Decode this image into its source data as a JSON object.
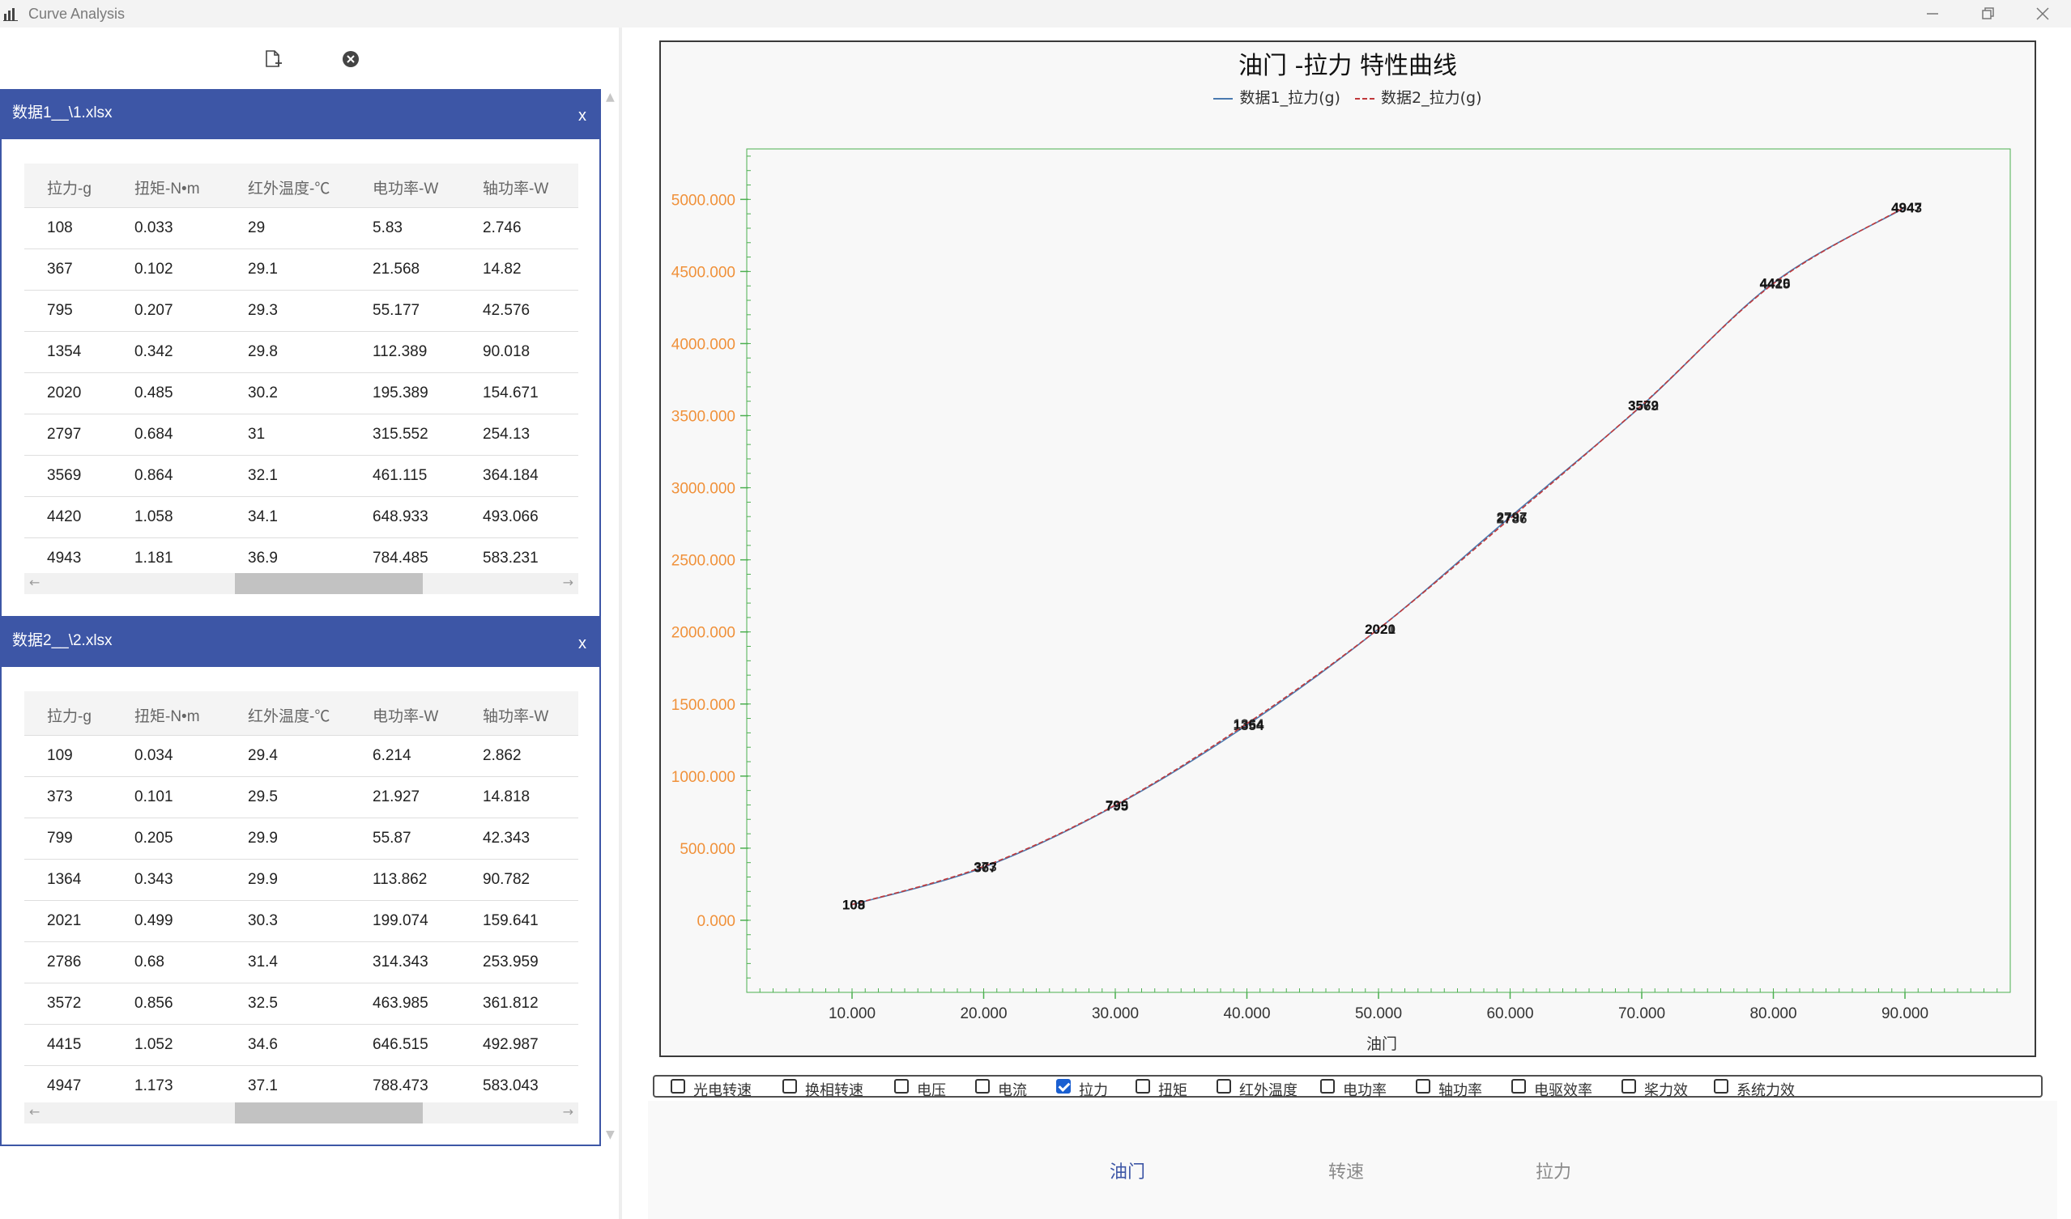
{
  "window": {
    "title": "Curve Analysis"
  },
  "toolbar": {
    "add_icon": "add-file-icon",
    "clear_icon": "close-circle-icon"
  },
  "panels": [
    {
      "title": "数据1__\\1.xlsx",
      "close_label": "x",
      "columns": [
        "拉力-g",
        "扭矩-N•m",
        "红外温度-℃",
        "电功率-W",
        "轴功率-W"
      ],
      "rows": [
        [
          "108",
          "0.033",
          "29",
          "5.83",
          "2.746"
        ],
        [
          "367",
          "0.102",
          "29.1",
          "21.568",
          "14.82"
        ],
        [
          "795",
          "0.207",
          "29.3",
          "55.177",
          "42.576"
        ],
        [
          "1354",
          "0.342",
          "29.8",
          "112.389",
          "90.018"
        ],
        [
          "2020",
          "0.485",
          "30.2",
          "195.389",
          "154.671"
        ],
        [
          "2797",
          "0.684",
          "31",
          "315.552",
          "254.13"
        ],
        [
          "3569",
          "0.864",
          "32.1",
          "461.115",
          "364.184"
        ],
        [
          "4420",
          "1.058",
          "34.1",
          "648.933",
          "493.066"
        ],
        [
          "4943",
          "1.181",
          "36.9",
          "784.485",
          "583.231"
        ]
      ]
    },
    {
      "title": "数据2__\\2.xlsx",
      "close_label": "x",
      "columns": [
        "拉力-g",
        "扭矩-N•m",
        "红外温度-℃",
        "电功率-W",
        "轴功率-W"
      ],
      "rows": [
        [
          "109",
          "0.034",
          "29.4",
          "6.214",
          "2.862"
        ],
        [
          "373",
          "0.101",
          "29.5",
          "21.927",
          "14.818"
        ],
        [
          "799",
          "0.205",
          "29.9",
          "55.87",
          "42.343"
        ],
        [
          "1364",
          "0.343",
          "29.9",
          "113.862",
          "90.782"
        ],
        [
          "2021",
          "0.499",
          "30.3",
          "199.074",
          "159.641"
        ],
        [
          "2786",
          "0.68",
          "31.4",
          "314.343",
          "253.959"
        ],
        [
          "3572",
          "0.856",
          "32.5",
          "463.985",
          "361.812"
        ],
        [
          "4415",
          "1.052",
          "34.6",
          "646.515",
          "492.987"
        ],
        [
          "4947",
          "1.173",
          "37.1",
          "788.473",
          "583.043"
        ]
      ]
    }
  ],
  "chart_data": {
    "type": "line",
    "title": "油门 -拉力 特性曲线",
    "xlabel": "油门",
    "ylabel": "",
    "x": [
      10,
      20,
      30,
      40,
      50,
      60,
      70,
      80,
      90
    ],
    "xlim": [
      2,
      98
    ],
    "ylim": [
      -500,
      5350
    ],
    "xticks": [
      "10.000",
      "20.000",
      "30.000",
      "40.000",
      "50.000",
      "60.000",
      "70.000",
      "80.000",
      "90.000"
    ],
    "yticks": [
      "0.000",
      "500.000",
      "1000.000",
      "1500.000",
      "2000.000",
      "2500.000",
      "3000.000",
      "3500.000",
      "4000.000",
      "4500.000",
      "5000.000"
    ],
    "legend_position": "top-center",
    "series": [
      {
        "name": "数据1_拉力(g)",
        "color": "#4a7ab0",
        "dash": false,
        "values": [
          108,
          367,
          795,
          1354,
          2020,
          2797,
          3569,
          4420,
          4943
        ],
        "labels": [
          "108",
          "367",
          "795",
          "1354",
          "2020",
          "2797",
          "3569",
          "4420",
          "4943"
        ]
      },
      {
        "name": "数据2_拉力(g)",
        "color": "#c0393b",
        "dash": true,
        "values": [
          109,
          373,
          799,
          1364,
          2021,
          2786,
          3572,
          4415,
          4947
        ],
        "labels": [
          "109",
          "373",
          "799",
          "1364",
          "2021",
          "2786",
          "3572",
          "4415",
          "4947"
        ]
      }
    ],
    "colors": {
      "axis": "#4caf50",
      "tick_label": "#f0913a",
      "x_tick_label": "#333333"
    }
  },
  "checkboxes": [
    {
      "label": "光电转速",
      "checked": false
    },
    {
      "label": "换相转速",
      "checked": false
    },
    {
      "label": "电压",
      "checked": false
    },
    {
      "label": "电流",
      "checked": false
    },
    {
      "label": "拉力",
      "checked": true
    },
    {
      "label": "扭矩",
      "checked": false
    },
    {
      "label": "红外温度",
      "checked": false
    },
    {
      "label": "电功率",
      "checked": false
    },
    {
      "label": "轴功率",
      "checked": false
    },
    {
      "label": "电驱效率",
      "checked": false
    },
    {
      "label": "桨力效",
      "checked": false
    },
    {
      "label": "系统力效",
      "checked": false
    }
  ],
  "bottom_tabs": [
    {
      "label": "油门",
      "active": true
    },
    {
      "label": "转速",
      "active": false
    },
    {
      "label": "拉力",
      "active": false
    }
  ]
}
